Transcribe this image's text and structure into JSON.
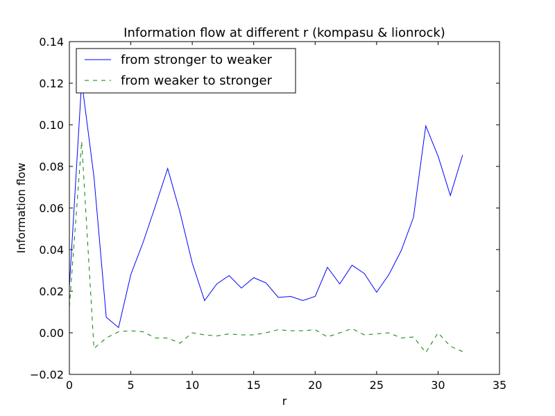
{
  "chart_data": {
    "type": "line",
    "title": "Information flow at different r (kompasu & lionrock)",
    "xlabel": "r",
    "ylabel": "Information flow",
    "xlim": [
      0,
      35
    ],
    "ylim": [
      -0.02,
      0.14
    ],
    "xticks": [
      "0",
      "5",
      "10",
      "15",
      "20",
      "25",
      "30",
      "35"
    ],
    "yticks": [
      "−0.02",
      "0.00",
      "0.02",
      "0.04",
      "0.06",
      "0.08",
      "0.10",
      "0.12",
      "0.14"
    ],
    "grid": false,
    "legend_position": "top-left",
    "x": [
      0,
      1,
      2,
      3,
      4,
      5,
      6,
      7,
      8,
      9,
      10,
      11,
      12,
      13,
      14,
      15,
      16,
      17,
      18,
      19,
      20,
      21,
      22,
      23,
      24,
      25,
      26,
      27,
      28,
      29,
      30,
      31,
      32
    ],
    "series": [
      {
        "name": "from stronger to weaker",
        "color": "#0000ff",
        "style": "solid",
        "values": [
          0.022,
          0.121,
          0.075,
          0.0075,
          0.0025,
          0.028,
          0.0435,
          0.061,
          0.079,
          0.058,
          0.0335,
          0.0155,
          0.0235,
          0.0275,
          0.0215,
          0.0265,
          0.024,
          0.017,
          0.0175,
          0.0155,
          0.0175,
          0.0315,
          0.0235,
          0.0325,
          0.0285,
          0.0195,
          0.028,
          0.0395,
          0.0555,
          0.0995,
          0.085,
          0.066,
          0.0855
        ]
      },
      {
        "name": "from weaker to stronger",
        "color": "#008000",
        "style": "dashed",
        "values": [
          0.0125,
          0.092,
          -0.0075,
          -0.0025,
          0.0005,
          0.001,
          0.0005,
          -0.0025,
          -0.0025,
          -0.005,
          0.0,
          -0.001,
          -0.0015,
          -0.0005,
          -0.001,
          -0.001,
          0.0,
          0.0015,
          0.001,
          0.001,
          0.0015,
          -0.002,
          0.0,
          0.002,
          -0.001,
          -0.0005,
          0.0,
          -0.0025,
          -0.002,
          -0.0095,
          0.0,
          -0.0065,
          -0.009
        ]
      }
    ]
  }
}
